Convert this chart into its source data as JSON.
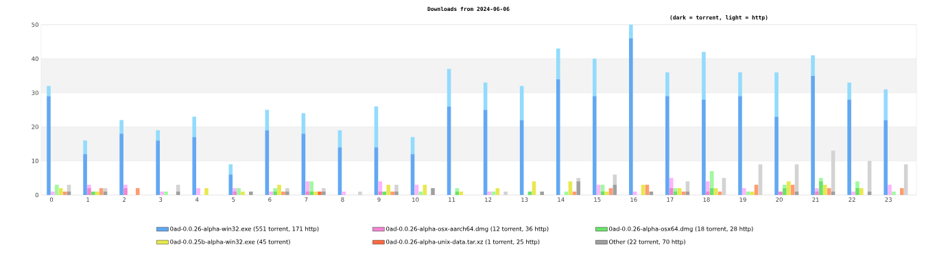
{
  "chart_data": [
    {
      "type": "bar",
      "title": "Downloads from 2024-06-06",
      "annotations": [
        "(dark = torrent, light = http)"
      ],
      "categories": [
        "0",
        "1",
        "2",
        "3",
        "4",
        "5",
        "6",
        "7",
        "8",
        "9",
        "10",
        "11",
        "12",
        "13",
        "14",
        "15",
        "16",
        "17",
        "18",
        "19",
        "20",
        "21",
        "22",
        "23"
      ],
      "stacked": true,
      "ylim": [
        0,
        50
      ],
      "yticks": [
        0,
        10,
        20,
        30,
        40,
        50
      ],
      "grid": "y",
      "legend": "bottom",
      "bands": [
        {
          "axis": "y",
          "from": 10,
          "to": 20,
          "color": "#f3f3f3"
        },
        {
          "axis": "y",
          "from": 30,
          "to": 40,
          "color": "#f3f3f3"
        }
      ],
      "series": [
        {
          "name": "0ad-0.0.26-alpha-win32.exe (551 torrent, 171 http)",
          "color": "#62a8f2",
          "values": [
            29,
            12,
            18,
            16,
            17,
            6,
            19,
            18,
            14,
            14,
            12,
            26,
            25,
            22,
            34,
            29,
            46,
            29,
            28,
            29,
            23,
            35,
            28,
            22
          ]
        },
        {
          "color": "#93dbfd",
          "values": [
            3,
            4,
            4,
            3,
            6,
            3,
            6,
            6,
            5,
            12,
            5,
            11,
            8,
            10,
            9,
            11,
            4,
            7,
            14,
            7,
            13,
            6,
            5,
            9
          ]
        }
      ]
    },
    {
      "type": "bar",
      "categories": [
        "0",
        "1",
        "2",
        "3",
        "4",
        "5",
        "6",
        "7",
        "8",
        "9",
        "10",
        "11",
        "12",
        "13",
        "14",
        "15",
        "16",
        "17",
        "18",
        "19",
        "20",
        "21",
        "22",
        "23"
      ],
      "stacked": true,
      "ylim": [
        0,
        50
      ],
      "tick_labels": false,
      "legend": "bottom",
      "series": [
        {
          "name": "0ad-0.0.26-alpha-osx-aarch64.dmg (12 torrent, 36 http)",
          "color": "#f285d2",
          "values": [
            0,
            2,
            2,
            0,
            0,
            1,
            0,
            1,
            0,
            1,
            0,
            0,
            0,
            0,
            0,
            0,
            0,
            2,
            1,
            0,
            1,
            1,
            0,
            0
          ]
        },
        {
          "color": "#fdb4fd",
          "values": [
            1,
            1,
            1,
            1,
            2,
            1,
            1,
            3,
            1,
            3,
            3,
            0,
            1,
            0,
            0,
            3,
            1,
            3,
            3,
            2,
            0,
            1,
            1,
            3
          ]
        }
      ]
    },
    {
      "type": "bar",
      "categories": [
        "0",
        "1",
        "2",
        "3",
        "4",
        "5",
        "6",
        "7",
        "8",
        "9",
        "10",
        "11",
        "12",
        "13",
        "14",
        "15",
        "16",
        "17",
        "18",
        "19",
        "20",
        "21",
        "22",
        "23"
      ],
      "stacked": true,
      "ylim": [
        0,
        50
      ],
      "tick_labels": false,
      "legend": "bottom",
      "series": [
        {
          "name": "0ad-0.0.26-alpha-osx64.dmg (18 torrent, 28 http)",
          "color": "#6ae26a",
          "values": [
            0,
            1,
            0,
            0,
            0,
            0,
            1,
            1,
            0,
            1,
            0,
            1,
            0,
            1,
            0,
            1,
            0,
            1,
            2,
            0,
            2,
            4,
            2,
            0
          ]
        },
        {
          "color": "#a0f9a0",
          "values": [
            3,
            0,
            0,
            1,
            0,
            2,
            1,
            3,
            0,
            0,
            1,
            1,
            1,
            0,
            1,
            2,
            0,
            1,
            5,
            1,
            1,
            1,
            2,
            1
          ]
        }
      ]
    },
    {
      "type": "bar",
      "categories": [
        "0",
        "1",
        "2",
        "3",
        "4",
        "5",
        "6",
        "7",
        "8",
        "9",
        "10",
        "11",
        "12",
        "13",
        "14",
        "15",
        "16",
        "17",
        "18",
        "19",
        "20",
        "21",
        "22",
        "23"
      ],
      "ylim": [
        0,
        50
      ],
      "tick_labels": false,
      "legend": "bottom",
      "series": [
        {
          "name": "0ad-0.0.25b-alpha-win32.exe (45 torrent)",
          "color": "#e8e850",
          "values": [
            2,
            1,
            0,
            0,
            2,
            1,
            3,
            1,
            0,
            3,
            3,
            1,
            2,
            4,
            4,
            1,
            3,
            2,
            2,
            1,
            4,
            3,
            2,
            0
          ]
        }
      ]
    },
    {
      "type": "bar",
      "categories": [
        "0",
        "1",
        "2",
        "3",
        "4",
        "5",
        "6",
        "7",
        "8",
        "9",
        "10",
        "11",
        "12",
        "13",
        "14",
        "15",
        "16",
        "17",
        "18",
        "19",
        "20",
        "21",
        "22",
        "23"
      ],
      "stacked": true,
      "ylim": [
        0,
        50
      ],
      "tick_labels": false,
      "legend": "bottom",
      "series": [
        {
          "name": "0ad-0.0.26-alpha-unix-data.tar.xz (1 torrent, 25 http)",
          "color": "#ff6a40",
          "values": [
            0,
            0,
            0,
            0,
            0,
            0,
            0,
            1,
            0,
            0,
            0,
            0,
            0,
            0,
            0,
            0,
            0,
            0,
            0,
            0,
            0,
            0,
            0,
            0
          ]
        },
        {
          "color": "#ff9c70",
          "values": [
            1,
            2,
            2,
            0,
            0,
            0,
            1,
            0,
            0,
            1,
            0,
            0,
            0,
            0,
            1,
            2,
            3,
            1,
            1,
            3,
            3,
            2,
            0,
            2
          ]
        }
      ]
    },
    {
      "type": "bar",
      "categories": [
        "0",
        "1",
        "2",
        "3",
        "4",
        "5",
        "6",
        "7",
        "8",
        "9",
        "10",
        "11",
        "12",
        "13",
        "14",
        "15",
        "16",
        "17",
        "18",
        "19",
        "20",
        "21",
        "22",
        "23"
      ],
      "stacked": true,
      "ylim": [
        0,
        50
      ],
      "tick_labels": false,
      "legend": "bottom",
      "series": [
        {
          "name": "Other (22 torrent, 70 http)",
          "color": "#a0a0a0",
          "values": [
            1,
            1,
            0,
            1,
            0,
            1,
            1,
            1,
            0,
            1,
            2,
            0,
            0,
            1,
            4,
            3,
            1,
            1,
            0,
            0,
            1,
            1,
            1,
            0
          ]
        },
        {
          "color": "#d3d3d3",
          "values": [
            2,
            1,
            0,
            2,
            0,
            0,
            1,
            1,
            1,
            2,
            0,
            0,
            1,
            0,
            1,
            3,
            0,
            3,
            5,
            9,
            8,
            12,
            9,
            9
          ]
        }
      ]
    }
  ]
}
